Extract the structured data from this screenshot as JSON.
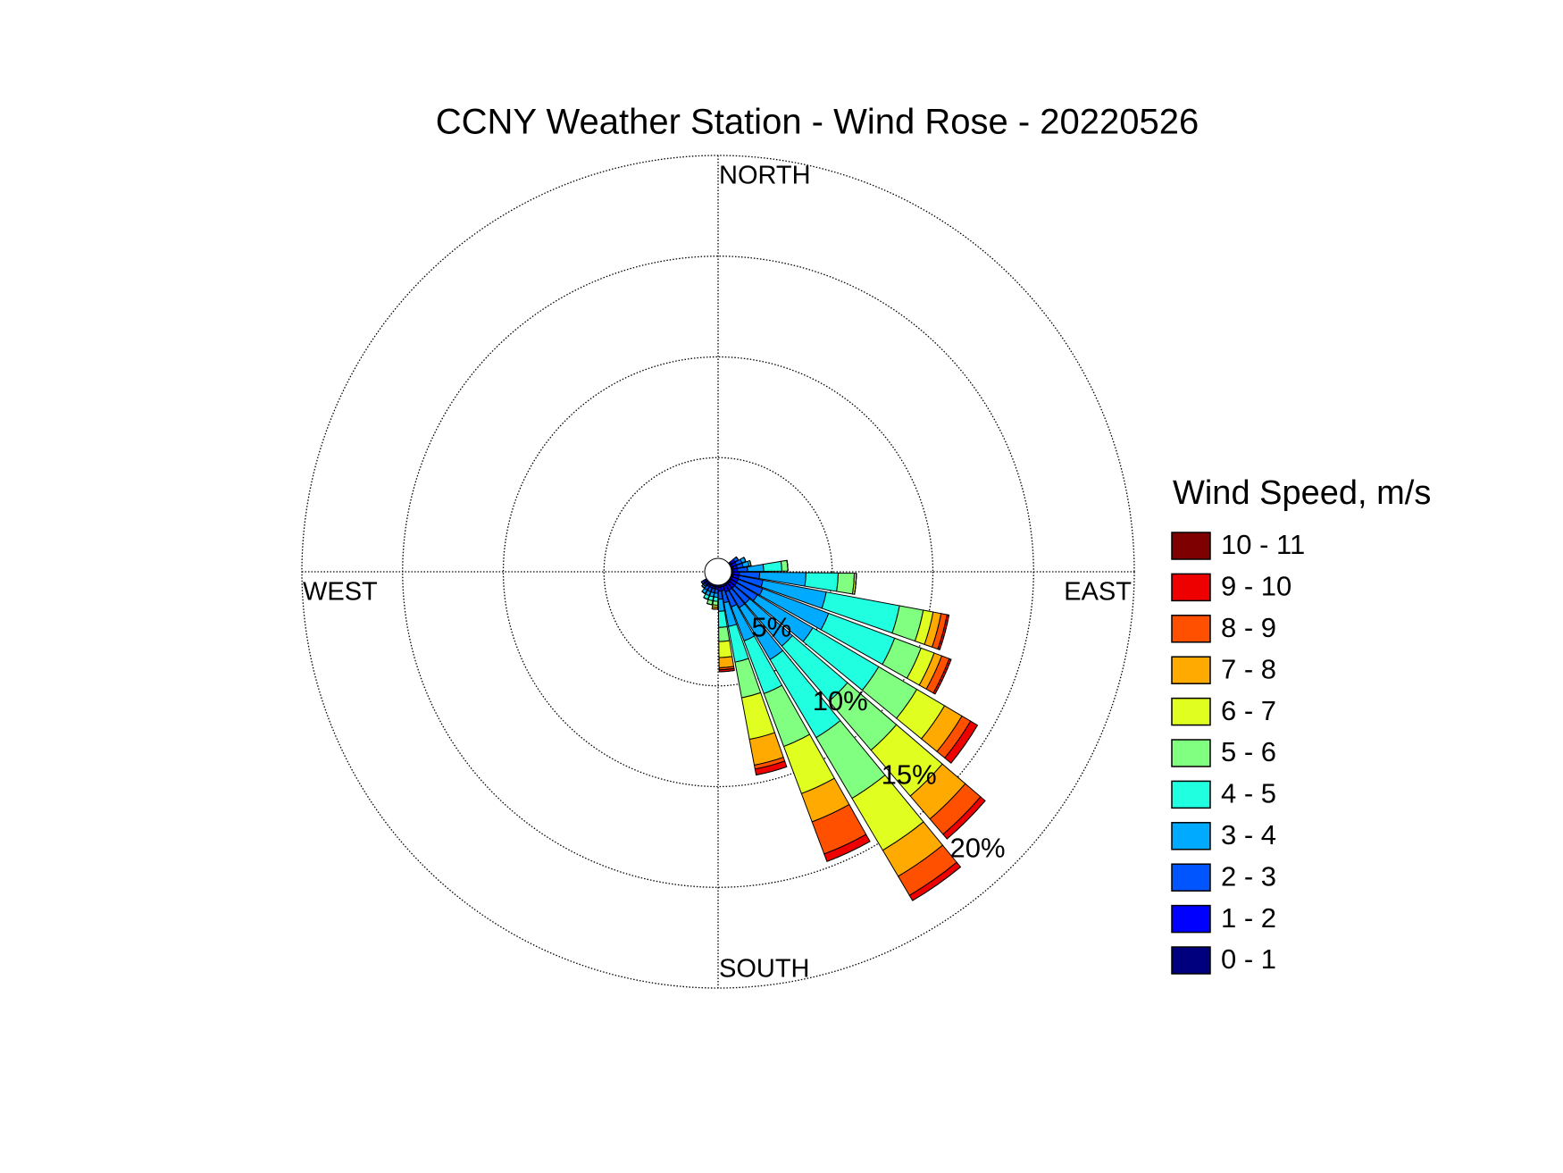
{
  "chart_data": {
    "type": "windrose",
    "title": "CCNY Weather Station - Wind Rose - 20220526",
    "direction_labels": [
      "NORTH",
      "EAST",
      "SOUTH",
      "WEST"
    ],
    "legend_title": "Wind Speed, m/s",
    "x": [
      55,
      65,
      75,
      85,
      95,
      105,
      115,
      125,
      135,
      145,
      155,
      165,
      175,
      185,
      195,
      205,
      215,
      225,
      235
    ],
    "rlim": [
      0,
      20
    ],
    "rticks": [
      {
        "value": 5,
        "label": "5%"
      },
      {
        "value": 10,
        "label": "10%"
      },
      {
        "value": 15,
        "label": "15%"
      },
      {
        "value": 20,
        "label": "20%"
      }
    ],
    "grid": true,
    "legend_position": "right",
    "series": [
      {
        "name": "0 - 1",
        "color": "#00007f",
        "values": [
          0.1,
          0.1,
          0.1,
          0.1,
          0.1,
          0.1,
          0.1,
          0.1,
          0.1,
          0.1,
          0.1,
          0.1,
          0.1,
          0.1,
          0.1,
          0.1,
          0.1,
          0.1,
          0.1
        ]
      },
      {
        "name": "1 - 2",
        "color": "#0000ff",
        "values": [
          0.2,
          0.2,
          0.2,
          0.2,
          0.3,
          0.3,
          0.3,
          0.3,
          0.3,
          0.3,
          0.3,
          0.2,
          0.2,
          0.1,
          0.1,
          0.1,
          0.1,
          0.1,
          0.1
        ]
      },
      {
        "name": "2 - 3",
        "color": "#0055ff",
        "values": [
          0.2,
          0.3,
          0.3,
          0.5,
          1.0,
          1.2,
          1.3,
          1.2,
          1.0,
          1.0,
          0.8,
          0.6,
          0.4,
          0.2,
          0.2,
          0.2,
          0.2,
          0.1,
          0.1
        ]
      },
      {
        "name": "3 - 4",
        "color": "#00aaff",
        "values": [
          0,
          0.2,
          0.3,
          0.8,
          2.3,
          3.2,
          3.5,
          3.2,
          2.8,
          3.0,
          1.8,
          1.2,
          0.6,
          0.2,
          0.2,
          0.2,
          0.2,
          0.1,
          0
        ]
      },
      {
        "name": "4 - 5",
        "color": "#20ffe0",
        "values": [
          0,
          0,
          0.1,
          0.9,
          1.6,
          3.7,
          3.5,
          3.8,
          3.6,
          4.5,
          2.8,
          1.8,
          0.8,
          0.2,
          0.2,
          0.2,
          0,
          0,
          0
        ]
      },
      {
        "name": "5 - 6",
        "color": "#80ff80",
        "values": [
          0,
          0,
          0,
          0.3,
          0.8,
          1.2,
          1.4,
          2.2,
          3.2,
          3.5,
          2.8,
          1.8,
          0.7,
          0.2,
          0.2,
          0,
          0,
          0,
          0
        ]
      },
      {
        "name": "6 - 7",
        "color": "#e0ff20",
        "values": [
          0,
          0,
          0,
          0,
          0.1,
          0.5,
          0.7,
          1.6,
          3.0,
          3.0,
          2.5,
          2.1,
          0.8,
          0.1,
          0,
          0,
          0,
          0,
          0
        ]
      },
      {
        "name": "7 - 8",
        "color": "#ffaa00",
        "values": [
          0,
          0,
          0,
          0,
          0,
          0.4,
          0.4,
          1.0,
          1.5,
          1.5,
          1.5,
          1.3,
          0.5,
          0.1,
          0,
          0,
          0,
          0,
          0
        ]
      },
      {
        "name": "8 - 9",
        "color": "#ff5000",
        "values": [
          0,
          0,
          0,
          0,
          0,
          0.3,
          0.4,
          0.5,
          1.0,
          1.1,
          1.7,
          0.2,
          0.1,
          0,
          0,
          0,
          0,
          0,
          0
        ]
      },
      {
        "name": "9 - 10",
        "color": "#ee0000",
        "values": [
          0,
          0,
          0,
          0,
          0,
          0.1,
          0.1,
          0.4,
          0.3,
          0.3,
          0.4,
          0.3,
          0.1,
          0,
          0,
          0,
          0,
          0,
          0
        ]
      },
      {
        "name": "10 - 11",
        "color": "#7f0000",
        "values": [
          0,
          0,
          0,
          0,
          0,
          0,
          0,
          0,
          0,
          0,
          0,
          0,
          0,
          0,
          0,
          0,
          0,
          0,
          0
        ]
      }
    ]
  }
}
